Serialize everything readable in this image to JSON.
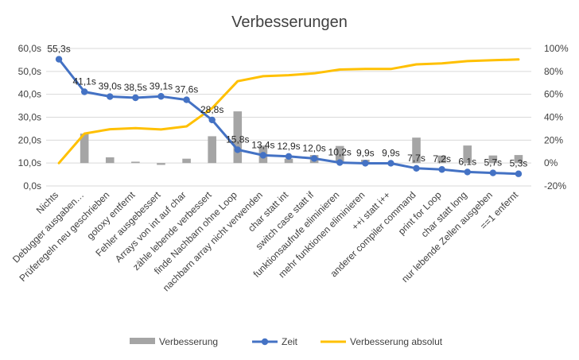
{
  "chart_data": {
    "type": "bar",
    "title": "Verbesserungen",
    "categories": [
      "Nichts",
      "Debugger ausgaben…",
      "Prüferegeln neu geschrieben",
      "gotoxy entfernt",
      "Fehler ausgebessert",
      "Arrays von int auf char",
      "zähle lebende verbessert",
      "finde Nachbarn ohne Loop",
      "nachbarn array nicht verwenden",
      "char statt int",
      "switch case statt if",
      "funktionsaufrufe eliminieren",
      "mehr funktionen eliminieren",
      "++i statt i++",
      "anderer compiler command",
      "print for Loop",
      "char statt long",
      "nur lebende Zellen ausgeben",
      "==1 enfernt"
    ],
    "series": [
      {
        "name": "Verbesserung",
        "type": "bar",
        "axis": "right",
        "color": "#a5a5a5",
        "values": [
          0,
          25.7,
          5.0,
          1.2,
          -1.6,
          3.8,
          23.4,
          45.1,
          15.2,
          3.8,
          7.0,
          14.9,
          2.9,
          0.0,
          22.2,
          6.5,
          15.3,
          6.6,
          7.0
        ]
      },
      {
        "name": "Zeit",
        "type": "line",
        "axis": "left",
        "color": "#4472c4",
        "unit": "s",
        "values": [
          55.3,
          41.1,
          39.0,
          38.5,
          39.1,
          37.6,
          28.8,
          15.8,
          13.4,
          12.9,
          12.0,
          10.2,
          9.9,
          9.9,
          7.7,
          7.2,
          6.1,
          5.7,
          5.3
        ],
        "labels": [
          "55,3s",
          "41,1s",
          "39,0s",
          "38,5s",
          "39,1s",
          "37,6s",
          "28,8s",
          "15,8s",
          "13,4s",
          "12,9s",
          "12,0s",
          "10,2s",
          "9,9s",
          "9,9s",
          "7,7s",
          "7,2s",
          "6,1s",
          "5,7s",
          "5,3s"
        ]
      },
      {
        "name": "Verbesserung absolut",
        "type": "line",
        "axis": "right",
        "color": "#ffc000",
        "values": [
          0,
          25.7,
          29.5,
          30.4,
          29.3,
          32.0,
          47.9,
          71.4,
          75.8,
          76.7,
          78.3,
          81.6,
          82.1,
          82.1,
          86.1,
          87.0,
          89.0,
          89.7,
          90.4
        ]
      }
    ],
    "y_left": {
      "ylim": [
        0,
        60
      ],
      "ticks": [
        0,
        10,
        20,
        30,
        40,
        50,
        60
      ],
      "tick_labels": [
        "0,0s",
        "10,0s",
        "20,0s",
        "30,0s",
        "40,0s",
        "50,0s",
        "60,0s"
      ]
    },
    "y_right": {
      "ylim": [
        -20,
        100
      ],
      "ticks": [
        -20,
        0,
        20,
        40,
        60,
        80,
        100
      ],
      "tick_labels": [
        "-20%",
        "0%",
        "20%",
        "40%",
        "60%",
        "80%",
        "100%"
      ]
    },
    "grid": true,
    "legend": "bottom"
  }
}
